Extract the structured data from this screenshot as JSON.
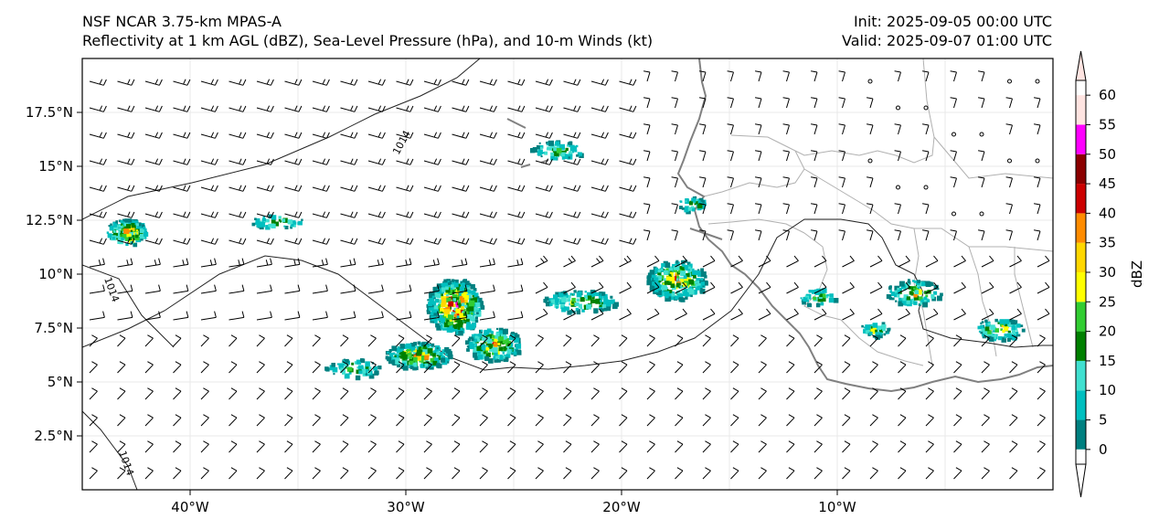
{
  "header": {
    "model_title": "NSF NCAR 3.75-km MPAS-A",
    "fields_title": "Reflectivity at 1 km AGL (dBZ), Sea-Level Pressure (hPa), and 10-m Winds (kt)",
    "init_label": "Init: 2025-09-05 00:00 UTC",
    "valid_label": "Valid: 2025-09-07 01:00 UTC"
  },
  "axes": {
    "lon_ticks": [
      "40°W",
      "30°W",
      "20°W",
      "10°W"
    ],
    "lon_values": [
      -40,
      -30,
      -20,
      -10
    ],
    "lat_ticks": [
      "2.5°N",
      "5°N",
      "7.5°N",
      "10°N",
      "12.5°N",
      "15°N",
      "17.5°N"
    ],
    "lat_values": [
      2.5,
      5,
      7.5,
      10,
      12.5,
      15,
      17.5
    ],
    "lon_range": [
      -45,
      0
    ],
    "lat_range": [
      0,
      20
    ]
  },
  "isobar_label": "1014",
  "colorbar": {
    "label": "dBZ",
    "ticks": [
      "0",
      "5",
      "10",
      "15",
      "20",
      "25",
      "30",
      "35",
      "40",
      "45",
      "50",
      "55",
      "60"
    ],
    "colors": [
      "#008080",
      "#00bfbf",
      "#40e0d0",
      "#008000",
      "#32cd32",
      "#ffff00",
      "#ffd700",
      "#ff8c00",
      "#cc0000",
      "#8b0000",
      "#ff00ff",
      "#ffe4e1"
    ],
    "under_color": "#ffffff",
    "over_color": "#ffe4e1"
  },
  "palette": {
    "frame": "#000000",
    "coast": "#808080",
    "border": "#b0b0b0",
    "grid": "#e8e8e8",
    "isobar": "#222222",
    "barb": "#000000"
  }
}
